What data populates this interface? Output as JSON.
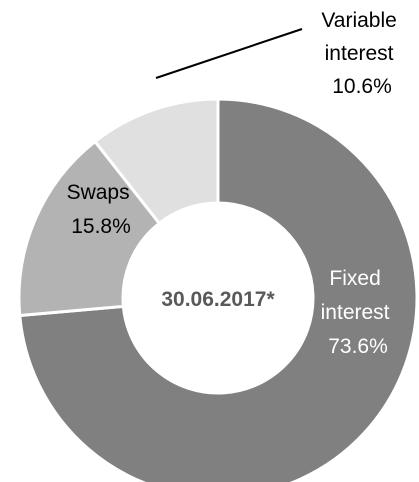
{
  "chart_data": {
    "type": "pie",
    "center_label": "30.06.2017*",
    "slices": [
      {
        "label_lines": [
          "Fixed",
          "interest"
        ],
        "value": 73.6,
        "value_label": "73.6%",
        "color": "#808080",
        "label_color": "#ffffff"
      },
      {
        "label_lines": [
          "Swaps"
        ],
        "value": 15.8,
        "value_label": "15.8%",
        "color": "#b3b3b3",
        "label_color": "#000000"
      },
      {
        "label_lines": [
          "Variable",
          "interest"
        ],
        "value": 10.6,
        "value_label": "10.6%",
        "color": "#e0e0e0",
        "label_color": "#000000"
      }
    ],
    "center_label_color": "#595959",
    "background": "#ffffff"
  }
}
